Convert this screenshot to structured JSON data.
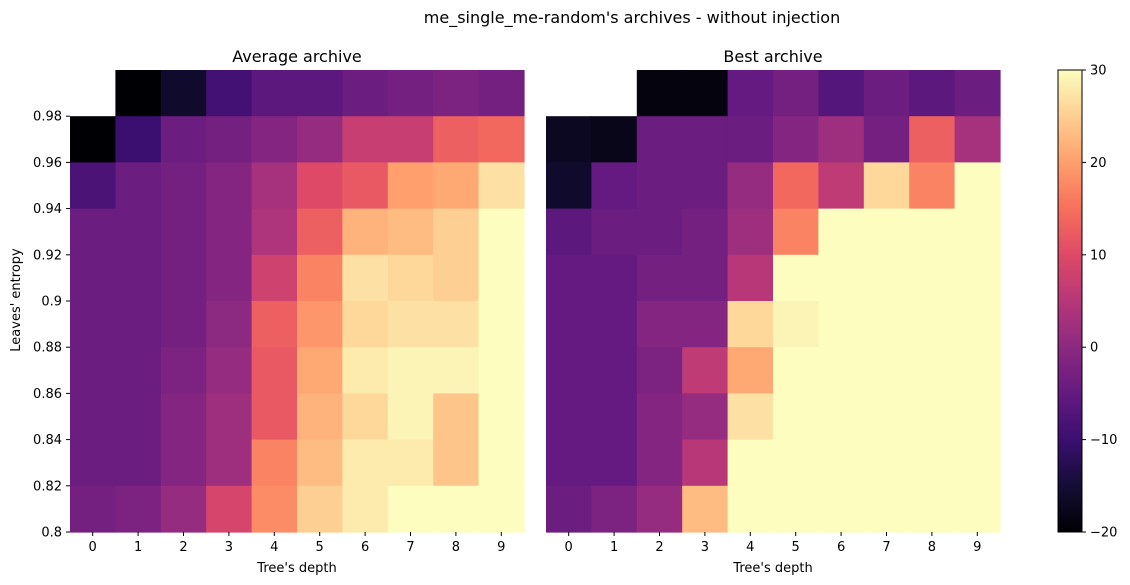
{
  "figure": {
    "suptitle": "me_single_me-random's archives - without injection"
  },
  "chart_data": [
    {
      "type": "heatmap",
      "title": "Average archive",
      "xlabel": "Tree's depth",
      "ylabel": "Leaves' entropy",
      "x_categories": [
        "0",
        "1",
        "2",
        "3",
        "4",
        "5",
        "6",
        "7",
        "8",
        "9"
      ],
      "y_ticks": [
        "0.98",
        "0.96",
        "0.94",
        "0.92",
        "0.9",
        "0.88",
        "0.86",
        "0.84",
        "0.82",
        "0.8"
      ],
      "rows_top_to_bottom": [
        [
          null,
          -20,
          -16,
          -9,
          -6,
          -6,
          -4,
          -3,
          -2,
          -3
        ],
        [
          -20,
          -10,
          -4,
          -3,
          -1,
          1,
          7,
          7,
          13,
          14
        ],
        [
          -8,
          -4,
          -3,
          -1,
          3,
          10,
          12,
          20,
          21,
          27
        ],
        [
          -4,
          -4,
          -3,
          -1,
          4,
          13,
          22,
          23,
          25,
          30
        ],
        [
          -4,
          -4,
          -3,
          -1,
          8,
          17,
          27,
          26,
          25,
          30
        ],
        [
          -4,
          -4,
          -3,
          0,
          13,
          19,
          26,
          27,
          27,
          30
        ],
        [
          -4,
          -4,
          -2,
          1,
          12,
          21,
          28,
          29,
          29,
          30
        ],
        [
          -4,
          -4,
          -1,
          2,
          12,
          22,
          26,
          29,
          24,
          30
        ],
        [
          -4,
          -4,
          -1,
          2,
          17,
          23,
          28,
          28,
          24,
          30
        ],
        [
          -3,
          -2,
          1,
          9,
          18,
          25,
          28,
          30,
          30,
          30
        ]
      ],
      "vmin": -20,
      "vmax": 30,
      "colormap": "magma"
    },
    {
      "type": "heatmap",
      "title": "Best archive",
      "xlabel": "Tree's depth",
      "ylabel": "",
      "x_categories": [
        "0",
        "1",
        "2",
        "3",
        "4",
        "5",
        "6",
        "7",
        "8",
        "9"
      ],
      "y_ticks": [],
      "rows_top_to_bottom": [
        [
          null,
          null,
          -19,
          -19,
          -5,
          -3,
          -7,
          -4,
          -6,
          -4
        ],
        [
          -17,
          -18,
          -4,
          -4,
          -4,
          -1,
          2,
          -3,
          13,
          3
        ],
        [
          -16,
          -5,
          -4,
          -4,
          1,
          14,
          6,
          26,
          17,
          30
        ],
        [
          -6,
          -4,
          -4,
          -3,
          2,
          17,
          30,
          30,
          30,
          30
        ],
        [
          -5,
          -5,
          -3,
          -3,
          5,
          30,
          30,
          30,
          30,
          30
        ],
        [
          -5,
          -5,
          -1,
          -1,
          26,
          29,
          30,
          30,
          30,
          30
        ],
        [
          -5,
          -5,
          -2,
          6,
          21,
          30,
          30,
          30,
          30,
          30
        ],
        [
          -5,
          -5,
          -1,
          1,
          27,
          30,
          30,
          30,
          30,
          30
        ],
        [
          -5,
          -5,
          -1,
          5,
          30,
          30,
          30,
          30,
          30,
          30
        ],
        [
          -4,
          -2,
          1,
          23,
          30,
          30,
          30,
          30,
          30,
          30
        ]
      ],
      "vmin": -20,
      "vmax": 30,
      "colormap": "magma"
    }
  ],
  "colorbar": {
    "ticks": [
      "30",
      "20",
      "10",
      "0",
      "−10",
      "−20"
    ],
    "tick_values": [
      30,
      20,
      10,
      0,
      -10,
      -20
    ],
    "vmin": -20,
    "vmax": 30
  }
}
